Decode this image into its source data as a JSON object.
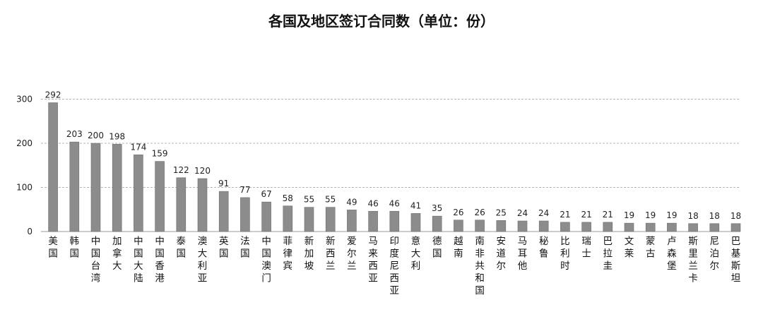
{
  "chart_data": {
    "type": "bar",
    "title": "各国及地区签订合同数（单位：份）",
    "xlabel": "",
    "ylabel": "",
    "ylim": [
      0,
      360
    ],
    "yticks": [
      0,
      100,
      200,
      300
    ],
    "grid": true,
    "grid_style": "dashed",
    "bar_color": "#8c8c8c",
    "categories": [
      "美国",
      "韩国",
      "中国台湾",
      "加拿大",
      "中国大陆",
      "中国香港",
      "泰国",
      "澳大利亚",
      "英国",
      "法国",
      "中国澳门",
      "菲律宾",
      "新加坡",
      "新西兰",
      "爱尔兰",
      "马来西亚",
      "印度尼西亚",
      "意大利",
      "德国",
      "越南",
      "南非共和国",
      "安道尔",
      "马耳他",
      "秘鲁",
      "比利时",
      "瑞士",
      "巴拉圭",
      "文莱",
      "蒙古",
      "卢森堡",
      "斯里兰卡",
      "尼泊尔",
      "巴基斯坦"
    ],
    "values": [
      292,
      203,
      200,
      198,
      174,
      159,
      122,
      120,
      91,
      77,
      67,
      58,
      55,
      55,
      49,
      46,
      46,
      41,
      35,
      26,
      26,
      25,
      24,
      24,
      21,
      21,
      21,
      19,
      19,
      19,
      18,
      18,
      18
    ]
  }
}
